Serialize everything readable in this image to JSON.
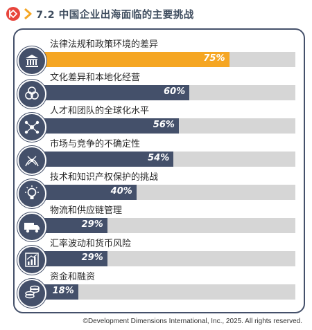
{
  "header": {
    "title": "7.2 中国企业出海面临的主要挑战"
  },
  "footer": {
    "copyright": "©Development Dimensions International, Inc., 2025. All rights reserved."
  },
  "colors": {
    "bar": "#44506a",
    "highlight": "#f5a623",
    "track": "#d6d6d6",
    "logo": "#e8453c"
  },
  "chart_data": {
    "type": "bar",
    "orientation": "horizontal",
    "title": "7.2 中国企业出海面临的主要挑战",
    "xlim": [
      0,
      100
    ],
    "categories": [
      "法律法规和政策环境的差异",
      "文化差异和本地化经营",
      "人才和团队的全球化水平",
      "市场与竞争的不确定性",
      "技术和知识产权保护的挑战",
      "物流和供应链管理",
      "汇率波动和货币风险",
      "资金和融资"
    ],
    "values": [
      75,
      60,
      56,
      54,
      40,
      29,
      29,
      18
    ],
    "value_labels": [
      "75%",
      "60%",
      "56%",
      "54%",
      "40%",
      "29%",
      "29%",
      "18%"
    ],
    "highlight_index": 0,
    "icons": [
      "courthouse-icon",
      "culture-circles-icon",
      "network-people-icon",
      "compass-icon",
      "lightbulb-icon",
      "truck-icon",
      "growth-chart-icon",
      "coins-icon"
    ]
  }
}
